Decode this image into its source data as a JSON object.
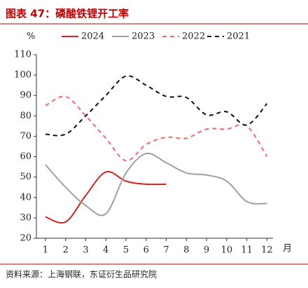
{
  "chart_data": {
    "type": "line",
    "title": "图表 47：磷酸铁锂开工率",
    "y_label": "%",
    "x_label": "月",
    "source": "资料来源：上海钢联，东证衍生品研究院",
    "x": [
      1,
      2,
      3,
      4,
      5,
      6,
      7,
      8,
      9,
      10,
      11,
      12
    ],
    "xlim": [
      0.55,
      12.3
    ],
    "xticks": [
      1,
      2,
      3,
      4,
      5,
      6,
      7,
      8,
      9,
      10,
      11,
      12
    ],
    "ylim": [
      20,
      110
    ],
    "yticks": [
      20,
      30,
      40,
      50,
      60,
      70,
      80,
      90,
      100,
      110
    ],
    "series": [
      {
        "name": "2024",
        "color": "#d42020",
        "dashed": false,
        "values": [
          30.5,
          28,
          41,
          52.5,
          48,
          46.5,
          46.5,
          null,
          null,
          null,
          null,
          null
        ]
      },
      {
        "name": "2023",
        "color": "#a0a0a0",
        "dashed": false,
        "values": [
          56,
          45,
          36,
          32,
          52,
          61.5,
          57,
          52,
          51,
          48,
          38,
          37
        ]
      },
      {
        "name": "2022",
        "color": "#f06a6a",
        "dashed": true,
        "values": [
          85,
          89.5,
          80,
          69,
          58,
          66,
          69.5,
          69,
          73.5,
          73.5,
          75,
          60
        ]
      },
      {
        "name": "2021",
        "color": "#111111",
        "dashed": true,
        "values": [
          71,
          71,
          80,
          90,
          99.5,
          95,
          89.5,
          89,
          80.5,
          82,
          75.5,
          86
        ]
      }
    ]
  }
}
